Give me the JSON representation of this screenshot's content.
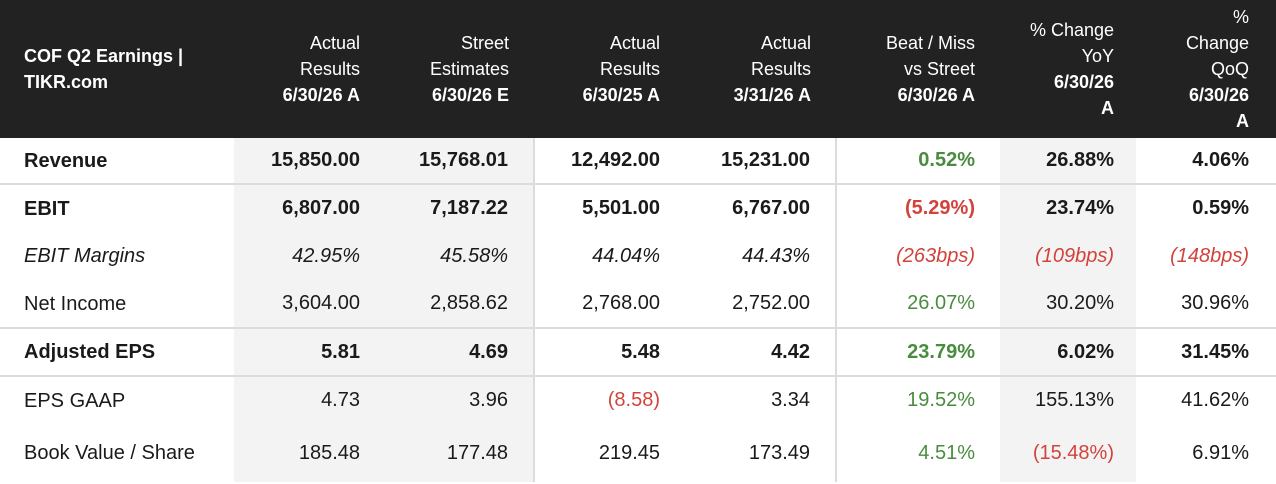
{
  "header": {
    "title": "COF Q2 Earnings | TIKR.com",
    "columns": [
      {
        "line1": "",
        "line2": "Actual",
        "line3": "Results",
        "line4": "6/30/26 A"
      },
      {
        "line1": "",
        "line2": "Street",
        "line3": "Estimates",
        "line4": "6/30/26 E"
      },
      {
        "line1": "",
        "line2": "Actual",
        "line3": "Results",
        "line4": "6/30/25 A"
      },
      {
        "line1": "",
        "line2": "Actual",
        "line3": "Results",
        "line4": "3/31/26 A"
      },
      {
        "line1": "",
        "line2": "Beat / Miss",
        "line3": "vs Street",
        "line4": "6/30/26 A"
      },
      {
        "line1": "% Change",
        "line2": "YoY",
        "line3": "6/30/26",
        "line4": "A"
      },
      {
        "line1": "%",
        "line2": "Change",
        "line3": "QoQ",
        "line4": "6/30/26",
        "line5": "A"
      }
    ]
  },
  "rows": [
    {
      "label": "Revenue",
      "values": [
        "15,850.00",
        "15,768.01",
        "12,492.00",
        "15,231.00",
        "0.52%",
        "26.88%",
        "4.06%"
      ]
    },
    {
      "label": "EBIT",
      "values": [
        "6,807.00",
        "7,187.22",
        "5,501.00",
        "6,767.00",
        "(5.29%)",
        "23.74%",
        "0.59%"
      ]
    },
    {
      "label": "EBIT Margins",
      "values": [
        "42.95%",
        "45.58%",
        "44.04%",
        "44.43%",
        "(263bps)",
        "(109bps)",
        "(148bps)"
      ]
    },
    {
      "label": "Net Income",
      "values": [
        "3,604.00",
        "2,858.62",
        "2,768.00",
        "2,752.00",
        "26.07%",
        "30.20%",
        "30.96%"
      ]
    },
    {
      "label": "Adjusted EPS",
      "values": [
        "5.81",
        "4.69",
        "5.48",
        "4.42",
        "23.79%",
        "6.02%",
        "31.45%"
      ]
    },
    {
      "label": "EPS GAAP",
      "values": [
        "4.73",
        "3.96",
        "(8.58)",
        "3.34",
        "19.52%",
        "155.13%",
        "41.62%"
      ]
    },
    {
      "label": "Book Value / Share",
      "values": [
        "185.48",
        "177.48",
        "219.45",
        "173.49",
        "4.51%",
        "(15.48%)",
        "6.91%"
      ]
    }
  ],
  "colors": {
    "header_bg": "#222222",
    "positive": "#4a8c3f",
    "negative": "#d2433c",
    "shade": "#f3f3f3"
  }
}
